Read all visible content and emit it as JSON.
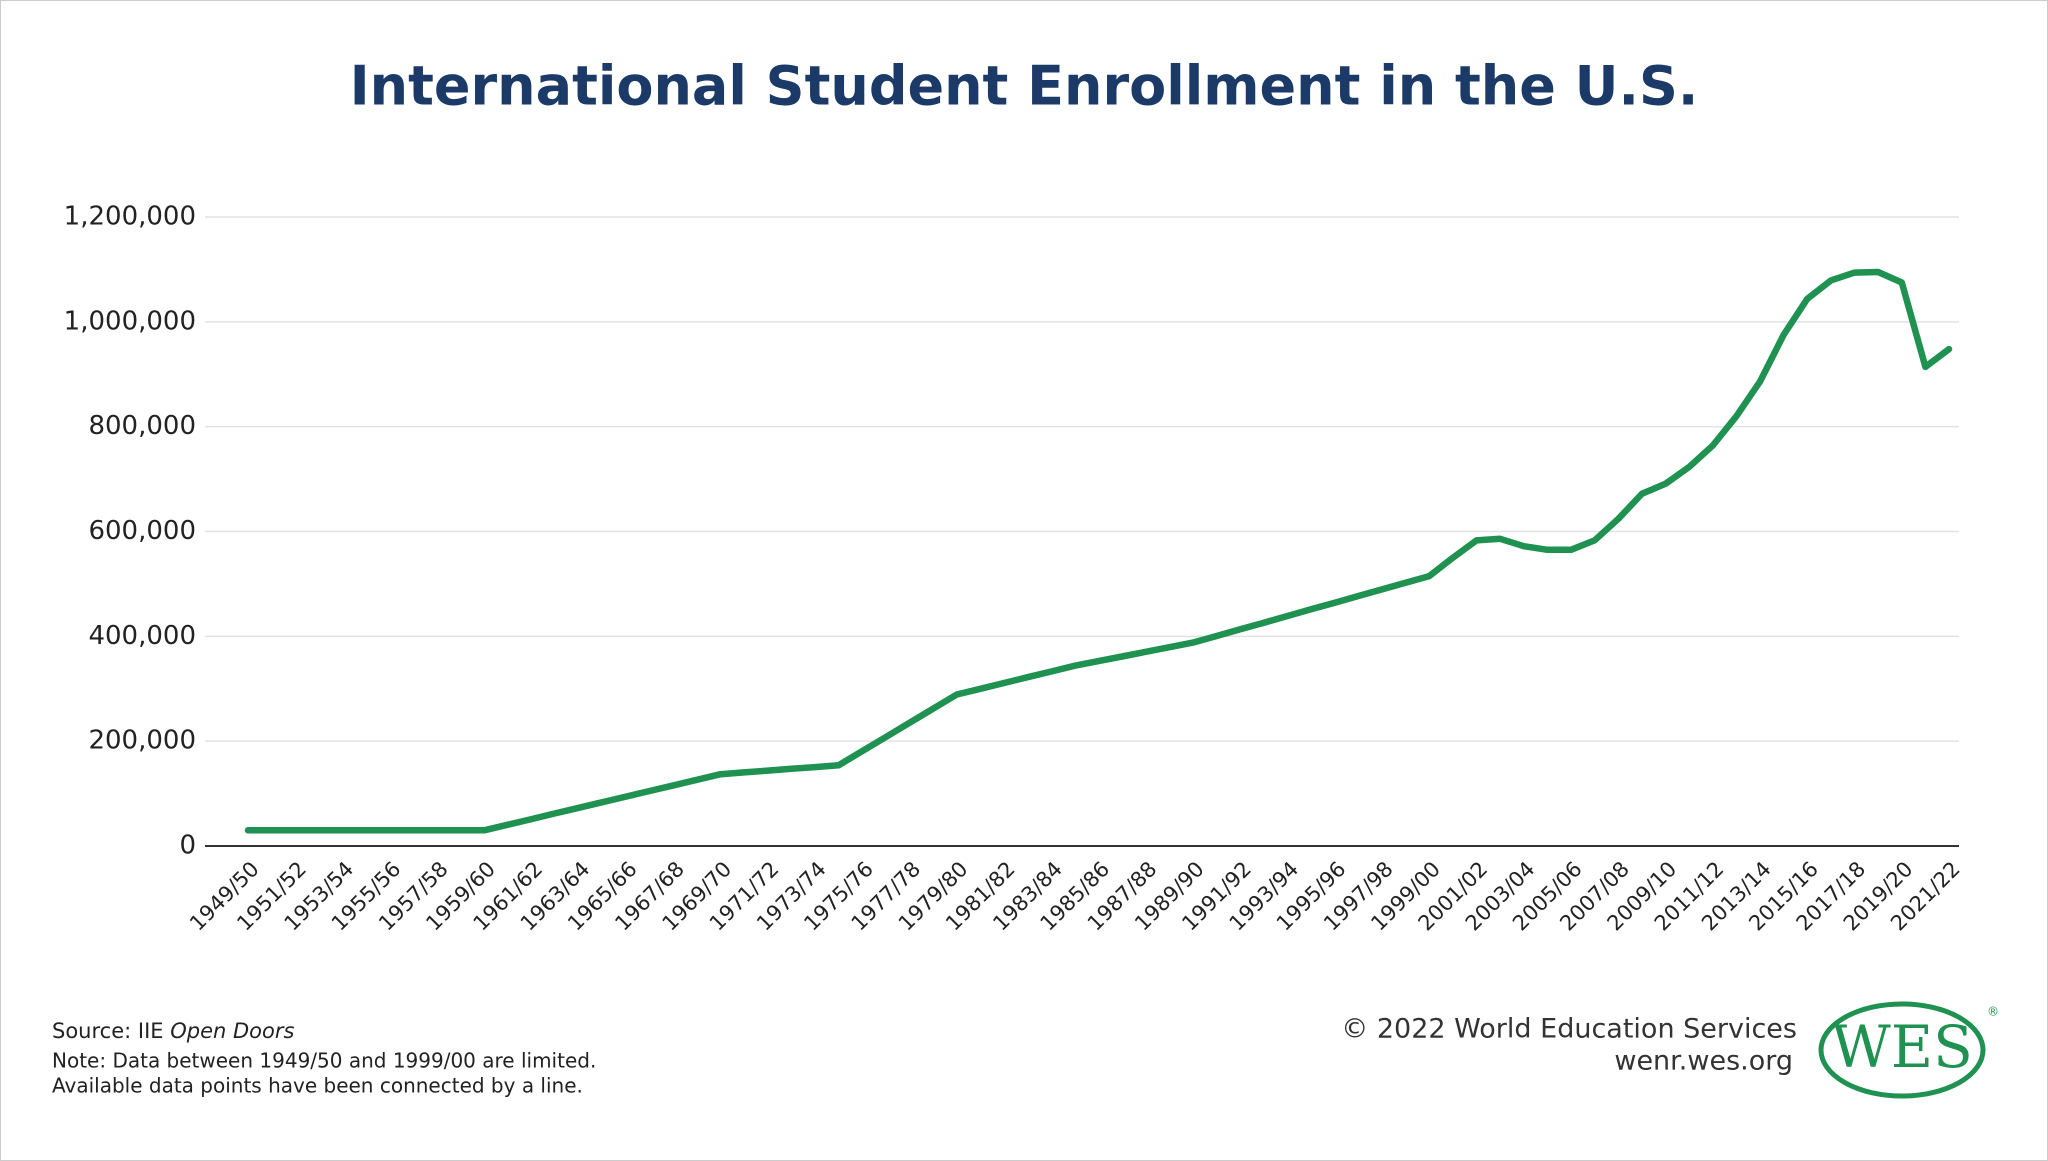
{
  "chart_data": {
    "type": "line",
    "title": "International Student Enrollment in the U.S.",
    "categories": [
      "1949/50",
      null,
      "1951/52",
      null,
      "1953/54",
      null,
      "1955/56",
      null,
      "1957/58",
      null,
      "1959/60",
      null,
      "1961/62",
      null,
      "1963/64",
      null,
      "1965/66",
      null,
      "1967/68",
      null,
      "1969/70",
      null,
      "1971/72",
      null,
      "1973/74",
      null,
      "1975/76",
      null,
      "1977/78",
      null,
      "1979/80",
      null,
      "1981/82",
      null,
      "1983/84",
      null,
      "1985/86",
      null,
      "1987/88",
      null,
      "1989/90",
      null,
      "1991/92",
      null,
      "1993/94",
      null,
      "1995/96",
      null,
      "1997/98",
      null,
      "1999/00",
      null,
      "2001/02",
      null,
      "2003/04",
      null,
      "2005/06",
      null,
      "2007/08",
      null,
      "2009/10",
      null,
      "2011/12",
      null,
      "2013/14",
      null,
      "2015/16",
      null,
      "2017/18",
      null,
      "2019/20",
      null,
      "2021/22"
    ],
    "values": [
      30000,
      30000,
      30000,
      30000,
      30000,
      30000,
      30000,
      30000,
      30000,
      30000,
      30000,
      40700,
      51400,
      62100,
      72800,
      83500,
      94200,
      104900,
      115600,
      126300,
      137000,
      140400,
      143800,
      147200,
      150600,
      154000,
      181000,
      208000,
      235000,
      262000,
      289000,
      300000,
      311000,
      322000,
      333000,
      344000,
      352800,
      361600,
      370400,
      379200,
      388000,
      400700,
      413400,
      426100,
      438800,
      451500,
      464200,
      476900,
      489600,
      502300,
      515000,
      550000,
      583000,
      586000,
      572000,
      565000,
      565000,
      583000,
      624000,
      672000,
      691000,
      723000,
      764000,
      820000,
      886000,
      975000,
      1044000,
      1079000,
      1094000,
      1095000,
      1075000,
      914000,
      948000
    ],
    "color": "#1f9150",
    "ylim": [
      0,
      1200000
    ],
    "yticks": [
      0,
      {
        "value": 200000,
        "label": "200,000"
      },
      {
        "value": 400000,
        "label": "400,000"
      },
      {
        "value": 600000,
        "label": "600,000"
      },
      {
        "value": 800000,
        "label": "800,000"
      },
      {
        "value": 1000000,
        "label": "1,000,000"
      },
      {
        "value": 1200000,
        "label": "1,200,000"
      }
    ],
    "grid": true
  },
  "footer": {
    "source_label": "Source: IIE",
    "source_title": "Open Doors",
    "note_line1": "Note: Data between 1949/50 and 1999/00 are limited.",
    "note_line2": "Available data points have been connected by a line.",
    "copyright": "© 2022 World Education Services",
    "url": "wenr.wes.org",
    "logo": "WES",
    "logo_mark": "®"
  }
}
